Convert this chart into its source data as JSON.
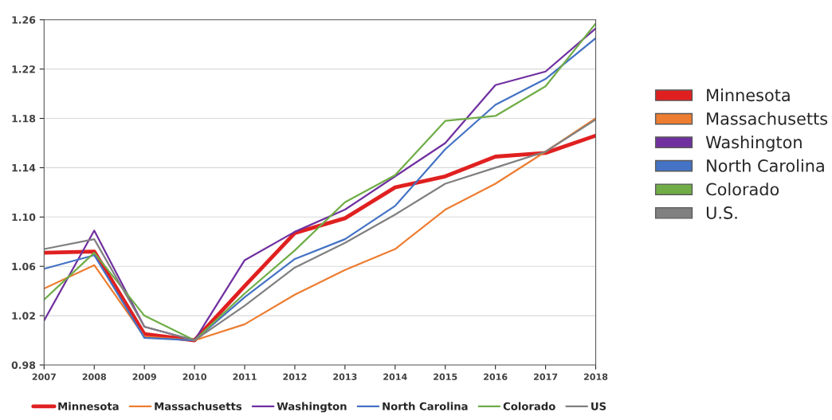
{
  "chart_data": {
    "type": "line",
    "x": [
      2007,
      2008,
      2009,
      2010,
      2011,
      2012,
      2013,
      2014,
      2015,
      2016,
      2017,
      2018
    ],
    "series": [
      {
        "name": "Minnesota",
        "color": "#e02020",
        "values": [
          1.071,
          1.072,
          1.005,
          1.0,
          1.044,
          1.087,
          1.099,
          1.124,
          1.133,
          1.149,
          1.152,
          1.166
        ]
      },
      {
        "name": "Massachusetts",
        "color": "#ed7d31",
        "values": [
          1.042,
          1.061,
          1.003,
          1.0,
          1.013,
          1.037,
          1.057,
          1.074,
          1.106,
          1.127,
          1.153,
          1.18
        ]
      },
      {
        "name": "Washington",
        "color": "#7030a0",
        "values": [
          1.016,
          1.089,
          1.011,
          1.0,
          1.065,
          1.088,
          1.106,
          1.133,
          1.16,
          1.207,
          1.218,
          1.253
        ]
      },
      {
        "name": "North Carolina",
        "color": "#4472c4",
        "values": [
          1.058,
          1.069,
          1.002,
          1.0,
          1.035,
          1.066,
          1.082,
          1.109,
          1.155,
          1.191,
          1.212,
          1.245
        ]
      },
      {
        "name": "Colorado",
        "color": "#70ad47",
        "values": [
          1.033,
          1.071,
          1.02,
          1.0,
          1.038,
          1.073,
          1.112,
          1.134,
          1.178,
          1.182,
          1.206,
          1.257
        ]
      },
      {
        "name": "US",
        "color": "#808080",
        "values": [
          1.074,
          1.082,
          1.011,
          1.0,
          1.028,
          1.059,
          1.079,
          1.102,
          1.127,
          1.14,
          1.153,
          1.179
        ]
      }
    ],
    "annotations": [
      "Minnesota",
      "Massachusetts",
      "Washington",
      "North Carolina",
      "Colorado",
      "U.S."
    ],
    "xlim": [
      2007,
      2018
    ],
    "xticks": [
      2007,
      2008,
      2009,
      2010,
      2011,
      2012,
      2013,
      2014,
      2015,
      2016,
      2017,
      2018
    ],
    "ylim": [
      0.98,
      1.26
    ],
    "yticks": [
      0.98,
      1.02,
      1.06,
      {
        "value": 1.1,
        "label": "1.10"
      },
      1.14,
      1.18,
      1.22,
      1.26
    ],
    "grid": "y",
    "legend": "bottom",
    "marker": "none",
    "line_style": "solid"
  }
}
